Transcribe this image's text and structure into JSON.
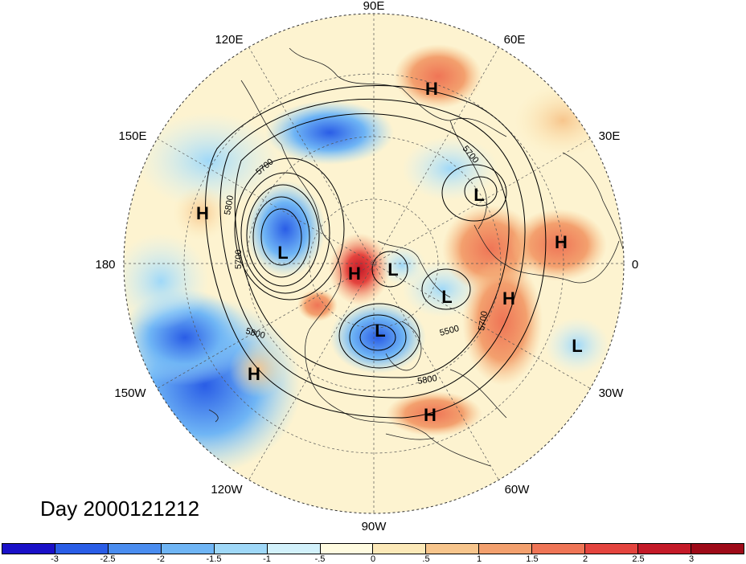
{
  "title_day": "Day 2000121212",
  "longitude_labels": {
    "n": "90E",
    "ne1": "60E",
    "ne2": "30E",
    "e": "0",
    "se1": "30W",
    "se2": "60W",
    "s": "90W",
    "sw1": "120W",
    "sw2": "150W",
    "w": "180",
    "nw1": "150E",
    "nw2": "120E"
  },
  "pressure_centers": [
    {
      "label": "H",
      "name": "high-siberia"
    },
    {
      "label": "H",
      "name": "high-pacific-west"
    },
    {
      "label": "L",
      "name": "low-aleutian"
    },
    {
      "label": "H",
      "name": "high-arctic"
    },
    {
      "label": "L",
      "name": "low-arctic"
    },
    {
      "label": "L",
      "name": "low-greenland"
    },
    {
      "label": "L",
      "name": "low-canada"
    },
    {
      "label": "H",
      "name": "high-atlantic"
    },
    {
      "label": "L",
      "name": "low-scandinavia"
    },
    {
      "label": "H",
      "name": "high-africa"
    },
    {
      "label": "L",
      "name": "low-east-atlantic"
    },
    {
      "label": "H",
      "name": "high-pacific-east"
    },
    {
      "label": "H",
      "name": "high-gulf"
    }
  ],
  "contour_labels": [
    "5700",
    "5800",
    "5700",
    "5800",
    "5500",
    "5800",
    "5700",
    "5700"
  ],
  "colorbar": {
    "colors": [
      "#1a10c8",
      "#2a5de6",
      "#4a8df0",
      "#6fb5f5",
      "#9fd8f8",
      "#d2f1fb",
      "#fffbe0",
      "#fce9b8",
      "#f7c58c",
      "#f3a06e",
      "#ef7556",
      "#e4443e",
      "#c41a28",
      "#9e0a18"
    ],
    "tick_labels": [
      "-3",
      "-2.5",
      "-2",
      "-1.5",
      "-1",
      "-.5",
      "0",
      ".5",
      "1",
      "1.5",
      "2",
      "2.5",
      "3"
    ]
  },
  "legend_position": "bottom"
}
